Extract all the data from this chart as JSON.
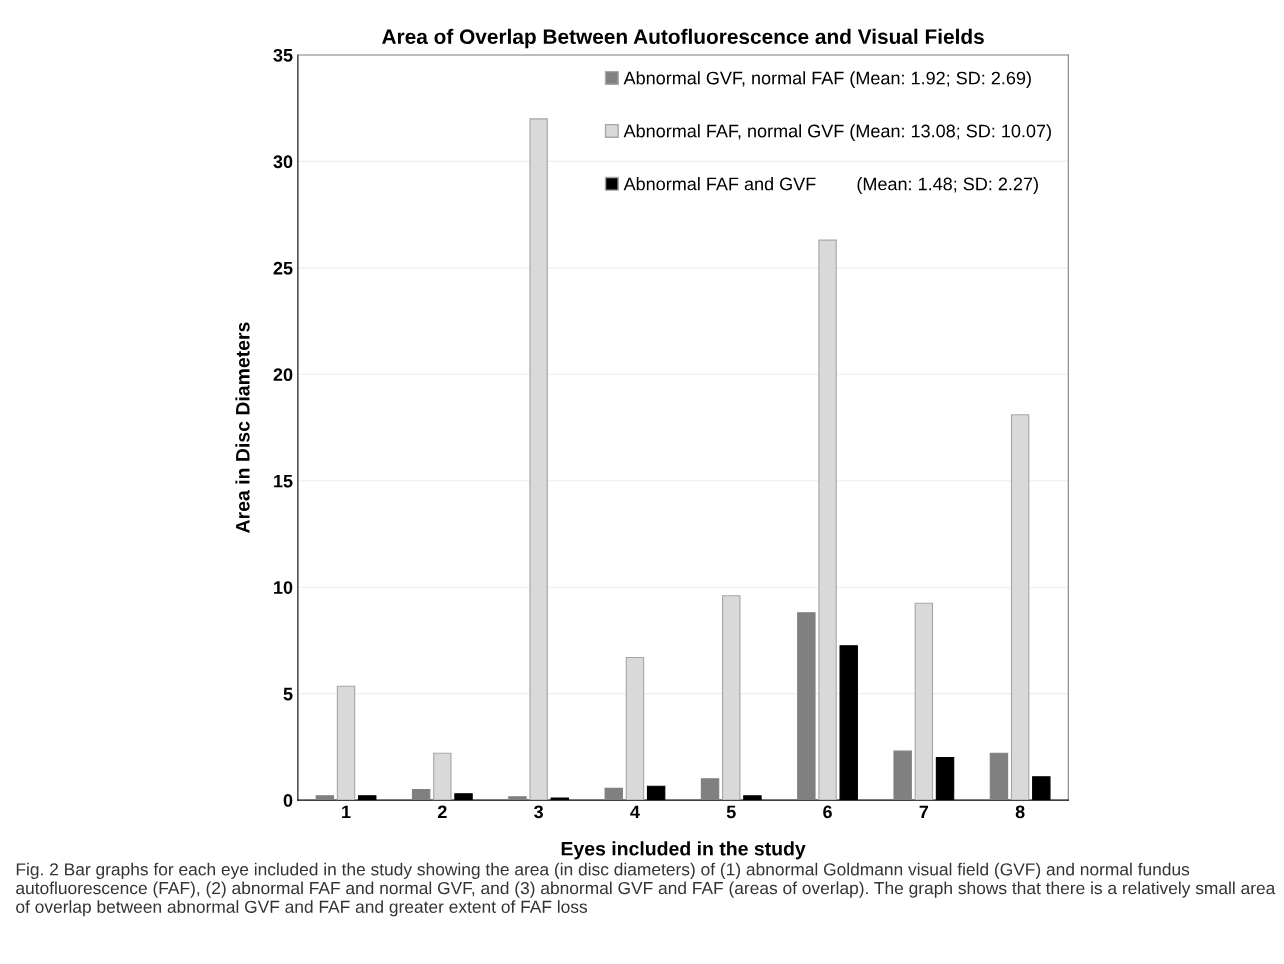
{
  "chart_data": {
    "type": "bar",
    "title": "Area of Overlap Between Autofluorescence and Visual Fields",
    "xlabel": "Eyes included in the study",
    "ylabel": "Area in Disc Diameters",
    "categories": [
      "1",
      "2",
      "3",
      "4",
      "5",
      "6",
      "7",
      "8"
    ],
    "series": [
      {
        "name": "Abnormal GVF, normal FAF (Mean: 1.92; SD: 2.69)",
        "color": "#808080",
        "values": [
          0.2,
          0.5,
          0.15,
          0.55,
          1.0,
          8.8,
          2.3,
          2.2
        ]
      },
      {
        "name": "Abnormal FAF, normal GVF (Mean: 13.08; SD: 10.07)",
        "color": "#d9d9d9",
        "values": [
          5.35,
          2.2,
          32.0,
          6.7,
          9.6,
          26.3,
          9.25,
          18.1
        ]
      },
      {
        "name": "Abnormal FAF and GVF        (Mean: 1.48; SD: 2.27)",
        "color": "#000000",
        "values": [
          0.2,
          0.3,
          0.1,
          0.65,
          0.2,
          7.25,
          2.0,
          1.1
        ]
      }
    ],
    "ylim": [
      0,
      35
    ],
    "yticks": [
      0,
      5,
      10,
      15,
      20,
      25,
      30,
      35
    ],
    "grid": "y",
    "legend": "top right",
    "annotations": [
      "Fig. 2 Bar graphs for each eye included in the study showing the area (in disc diameters) of (1) abnormal Goldmann visual field (GVF) and normal fundus autofluorescence (FAF), (2) abnormal FAF and normal GVF, and (3) abnormal GVF and FAF (areas of overlap). The graph shows that there is a relatively small area of overlap between abnormal GVF and FAF and greater extent of FAF loss"
    ]
  }
}
